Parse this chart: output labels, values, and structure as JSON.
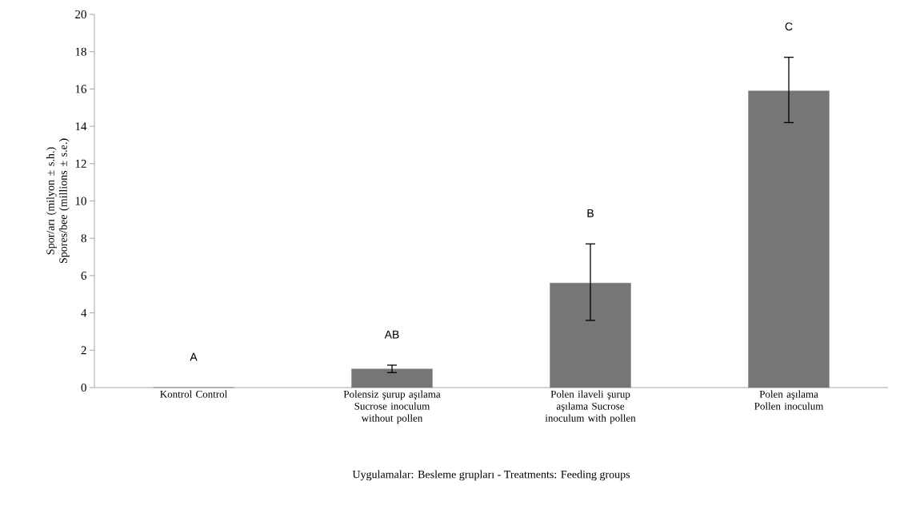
{
  "chart_data": {
    "type": "bar",
    "xlabel": "Uygulamalar: Besleme grupları - Treatments: Feeding groups",
    "ylabel": "Spor/arı (milyon ± s.h.) Spores/bee (millions ± s.e.)",
    "categories": [
      "Kontrol Control",
      "Polensiz şurup aşılama Sucrose inoculum without pollen",
      "Polen ilaveli şurup aşılama Sucrose inoculum with pollen",
      "Polen aşılama Pollen inoculum"
    ],
    "values": [
      0,
      1.0,
      5.6,
      15.9
    ],
    "errors": [
      null,
      [
        0.8,
        1.2
      ],
      [
        3.6,
        7.7
      ],
      [
        14.2,
        17.7
      ]
    ],
    "color": "#767676",
    "ylim": [
      0,
      20
    ],
    "yticks": [
      0,
      2,
      4,
      6,
      8,
      10,
      12,
      14,
      16,
      18,
      20
    ],
    "annotations": [
      "A",
      "AB",
      "B",
      "C"
    ]
  }
}
